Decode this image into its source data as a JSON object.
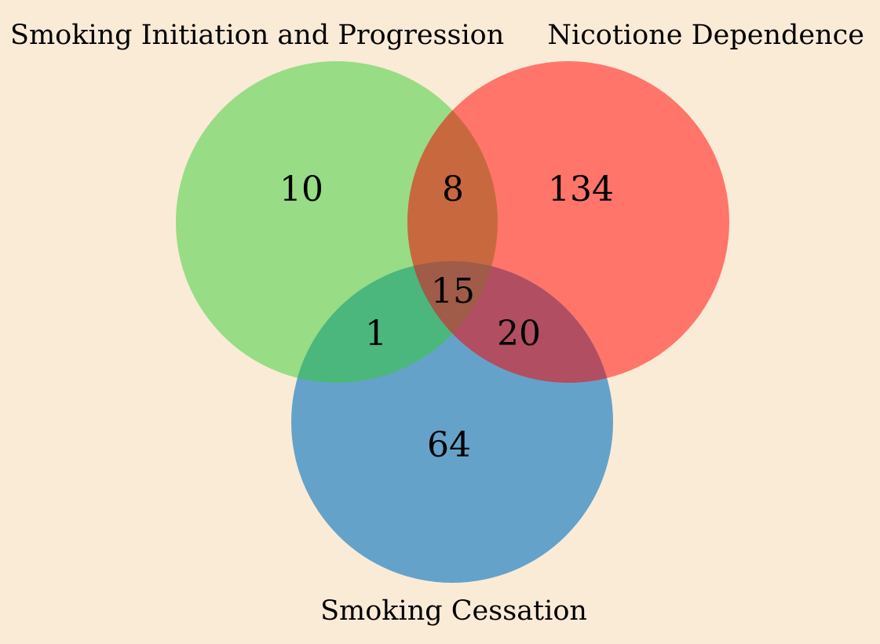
{
  "diagram": {
    "type": "venn3",
    "sets": [
      {
        "id": "A",
        "label": "Smoking Initiation and Progression",
        "color": "#98dc85"
      },
      {
        "id": "B",
        "label": "Nicotione Dependence",
        "color": "#ff756a"
      },
      {
        "id": "C",
        "label": "Smoking Cessation",
        "color": "#65a2c9"
      }
    ],
    "regions": {
      "A_only": "10",
      "B_only": "134",
      "C_only": "64",
      "AB": "8",
      "AC": "1",
      "BC": "20",
      "ABC": "15"
    },
    "overlap_colors": {
      "AB": "#c8683f",
      "AC": "#4bb77d",
      "BC": "#b14e62",
      "ABC": "#a05c48"
    },
    "background_color": "#faebd7"
  }
}
